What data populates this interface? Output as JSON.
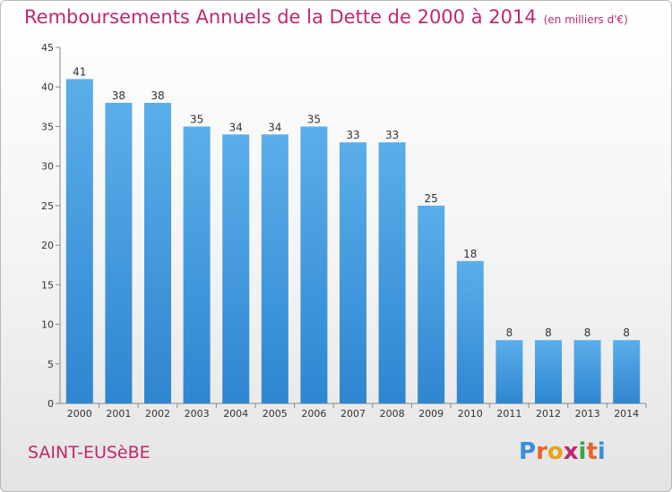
{
  "title": "Remboursements Annuels de la Dette de 2000 à 2014",
  "unit": "(en milliers d'€)",
  "commune": "SAINT-EUSèBE",
  "logo": {
    "letters": [
      "P",
      "r",
      "o",
      "x",
      "i",
      "t",
      "i"
    ],
    "colors": [
      "#3a8fd6",
      "#e8642c",
      "#e8a21c",
      "#c0286e",
      "#3aa54a",
      "#e8642c",
      "#3a8fd6"
    ]
  },
  "chart_data": {
    "type": "bar",
    "title": "Remboursements Annuels de la Dette de 2000 à 2014",
    "categories": [
      "2000",
      "2001",
      "2002",
      "2003",
      "2004",
      "2005",
      "2006",
      "2007",
      "2008",
      "2009",
      "2010",
      "2011",
      "2012",
      "2013",
      "2014"
    ],
    "values": [
      41,
      38,
      38,
      35,
      34,
      34,
      35,
      33,
      33,
      25,
      18,
      8,
      8,
      8,
      8
    ],
    "ylim": [
      0,
      45
    ],
    "yticks": [
      0,
      5,
      10,
      15,
      20,
      25,
      30,
      35,
      40,
      45
    ],
    "xlabel": "",
    "ylabel": "",
    "grid": false,
    "bar_color": "#3a8fd6"
  }
}
